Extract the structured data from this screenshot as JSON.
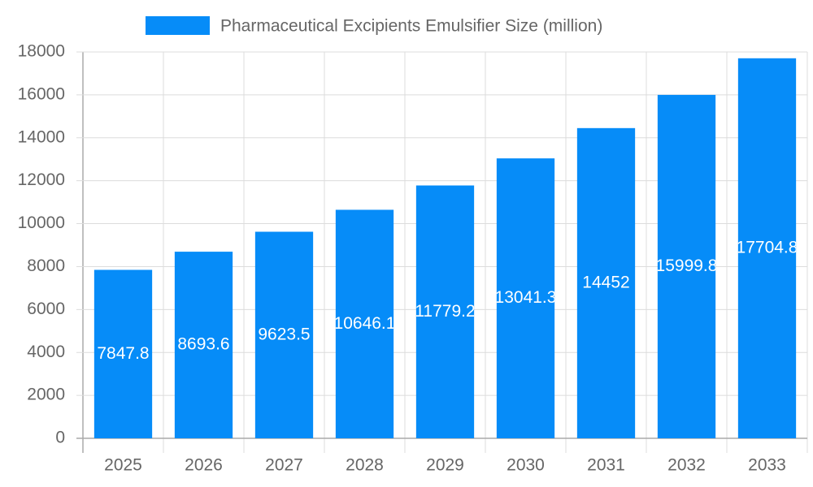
{
  "chart_data": {
    "type": "bar",
    "categories": [
      "2025",
      "2026",
      "2027",
      "2028",
      "2029",
      "2030",
      "2031",
      "2032",
      "2033"
    ],
    "series": [
      {
        "name": "Pharmaceutical Excipients Emulsifier Size (million)",
        "color": "#068cf8",
        "values": [
          7847.8,
          8693.6,
          9623.5,
          10646.1,
          11779.2,
          13041.3,
          14452,
          15999.8,
          17704.8
        ]
      }
    ],
    "ylim": [
      0,
      18000
    ],
    "yticks": [
      0,
      2000,
      4000,
      6000,
      8000,
      10000,
      12000,
      14000,
      16000,
      18000
    ],
    "grid": true,
    "legend": "top"
  }
}
